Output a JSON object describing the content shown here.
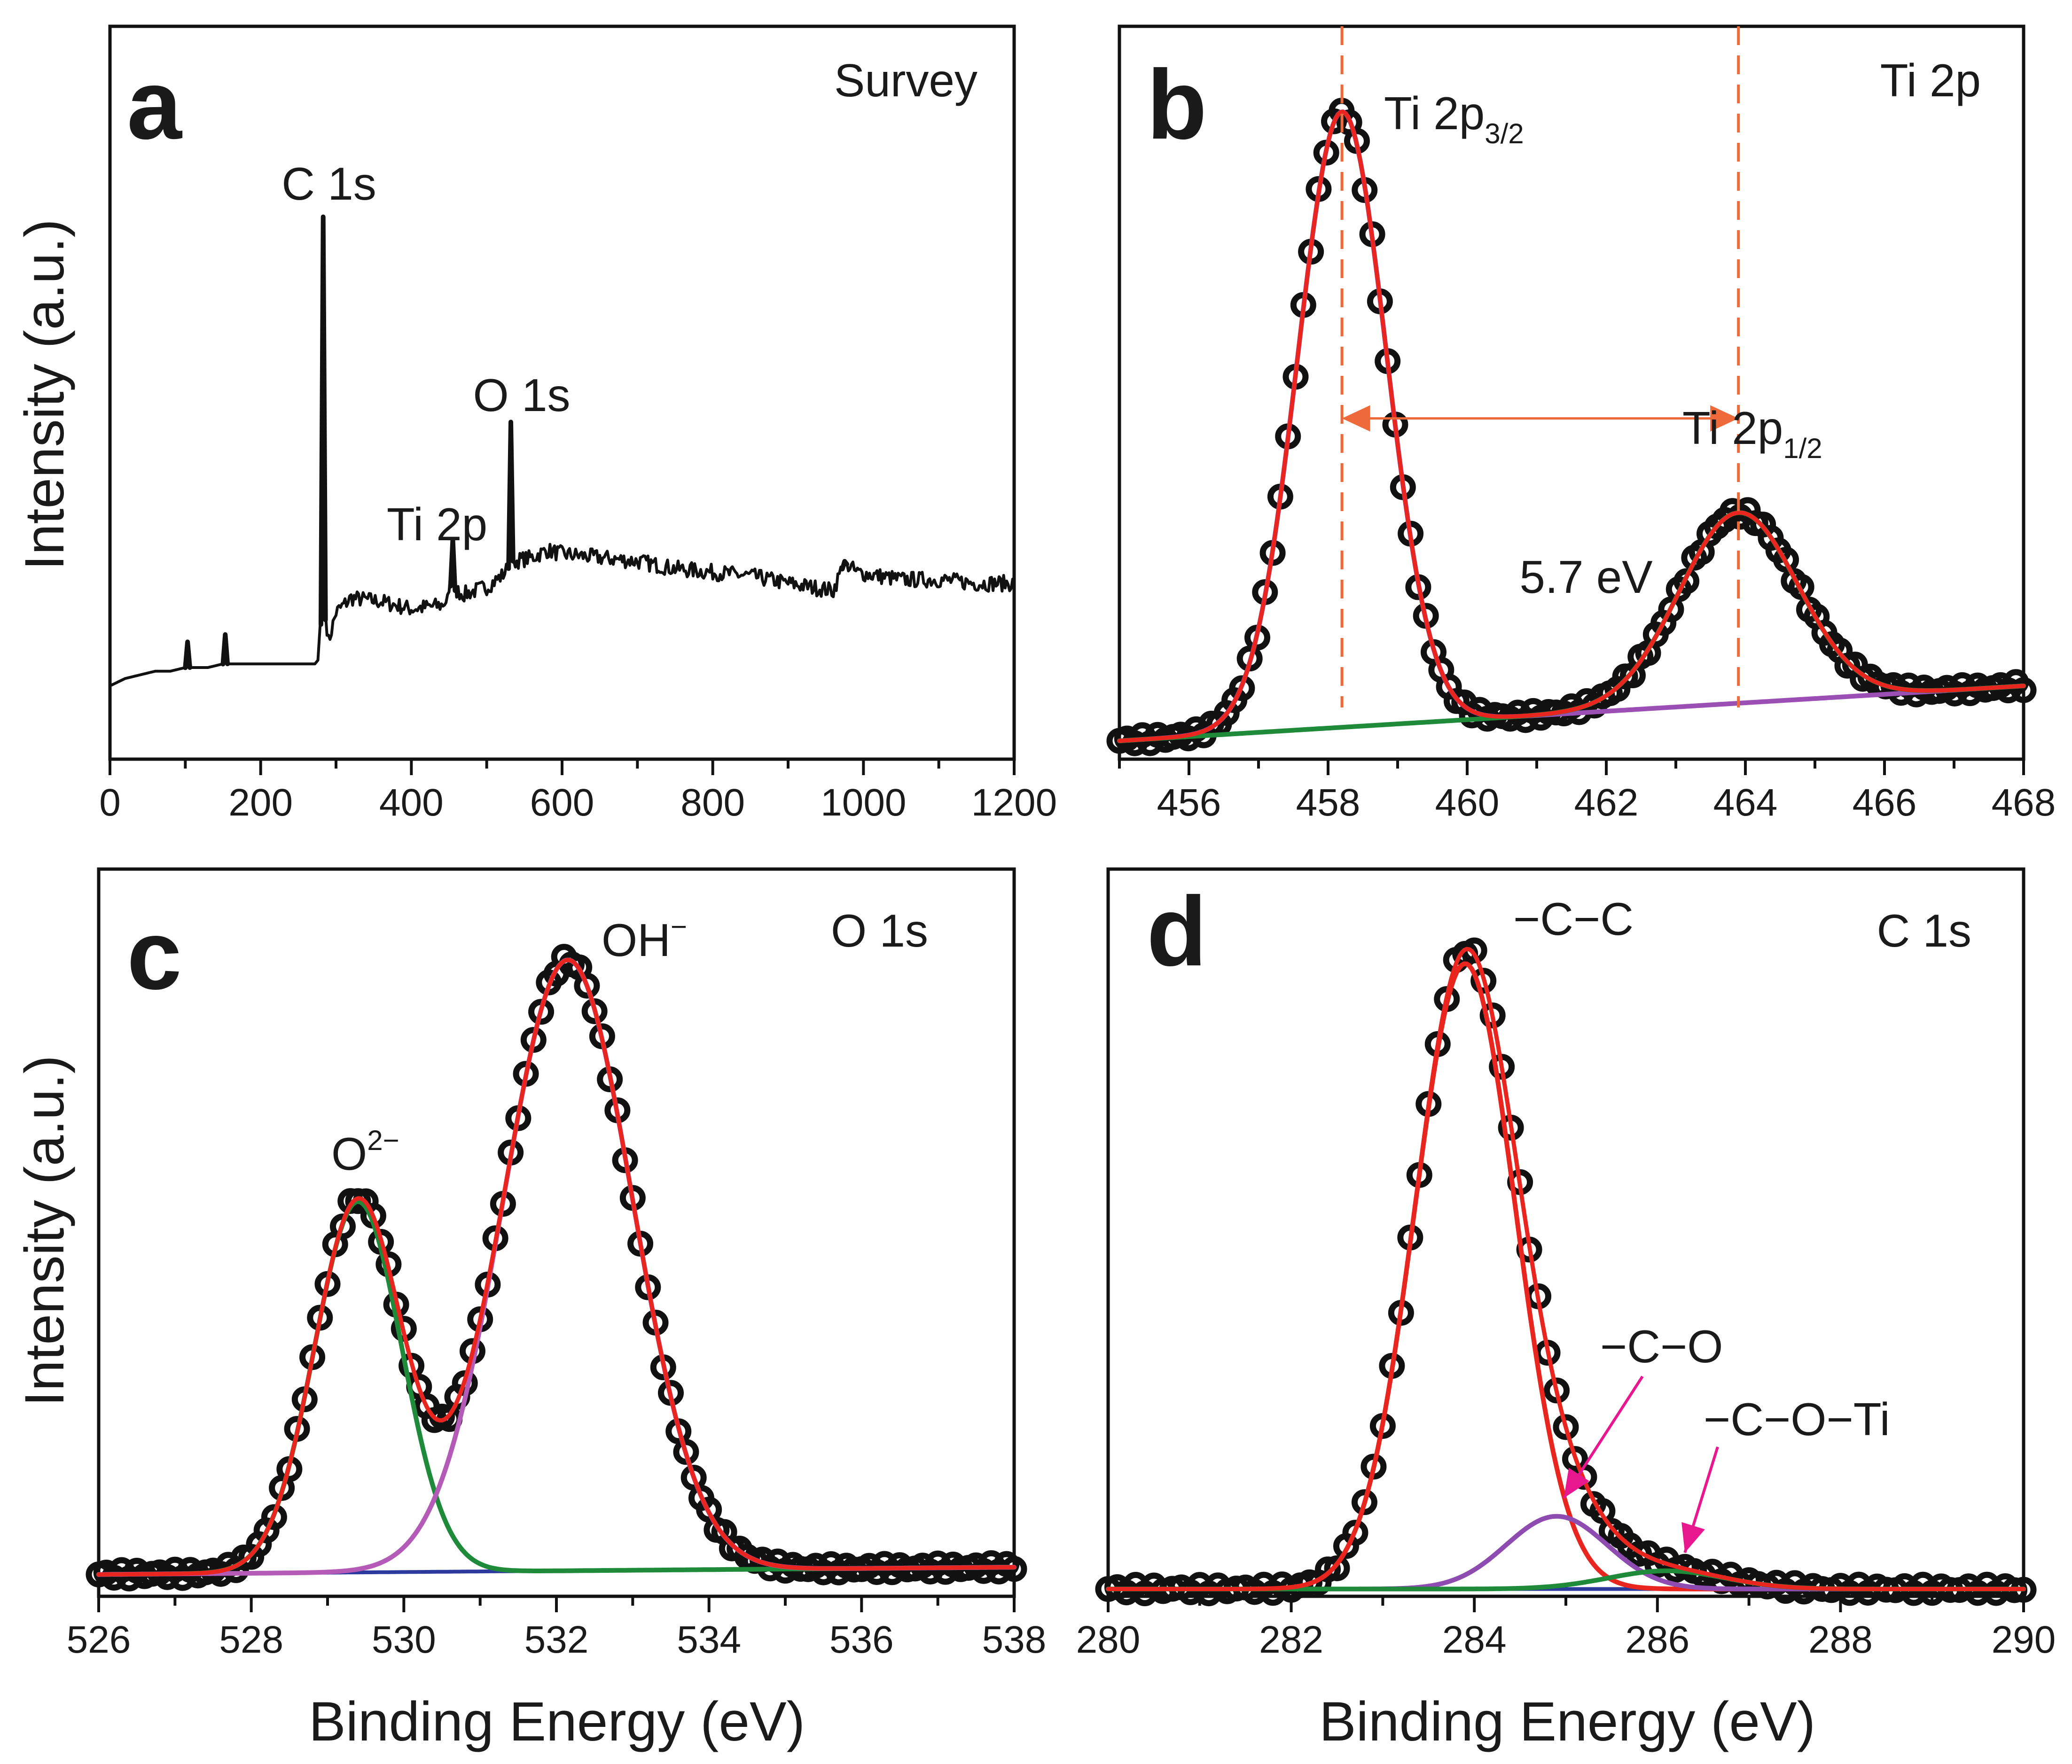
{
  "figure": {
    "y_axis_label": "Intensity (a.u.)",
    "x_axis_label": "Binding Energy (eV)"
  },
  "chart_data": [
    {
      "panel": "a",
      "title": "Survey",
      "type": "line",
      "xlim": [
        0,
        1200
      ],
      "xticks": [
        "0",
        "200",
        "400",
        "600",
        "800",
        "1000",
        "1200"
      ],
      "ylim": [
        0,
        10
      ],
      "ylabel": "Intensity (a.u.)",
      "xlabel": "",
      "series": [
        {
          "name": "",
          "color": "#111111",
          "points": [
            [
              0,
              1.0
            ],
            [
              20,
              1.1
            ],
            [
              40,
              1.15
            ],
            [
              60,
              1.2
            ],
            [
              80,
              1.2
            ],
            [
              100,
              1.25
            ],
            [
              103,
              1.6
            ],
            [
              106,
              1.25
            ],
            [
              130,
              1.25
            ],
            [
              150,
              1.3
            ],
            [
              153,
              1.7
            ],
            [
              156,
              1.3
            ],
            [
              200,
              1.3
            ],
            [
              240,
              1.3
            ],
            [
              272,
              1.3
            ],
            [
              276,
              1.35
            ],
            [
              280,
              2.0
            ],
            [
              283,
              7.4
            ],
            [
              286,
              2.0
            ],
            [
              290,
              1.6
            ],
            [
              300,
              2.0
            ],
            [
              320,
              2.2
            ],
            [
              360,
              2.15
            ],
            [
              400,
              2.05
            ],
            [
              440,
              2.1
            ],
            [
              450,
              2.2
            ],
            [
              455,
              3.0
            ],
            [
              459,
              2.3
            ],
            [
              470,
              2.25
            ],
            [
              500,
              2.35
            ],
            [
              520,
              2.5
            ],
            [
              528,
              2.6
            ],
            [
              532,
              4.6
            ],
            [
              536,
              2.7
            ],
            [
              560,
              2.75
            ],
            [
              580,
              2.85
            ],
            [
              600,
              2.8
            ],
            [
              650,
              2.75
            ],
            [
              700,
              2.7
            ],
            [
              750,
              2.6
            ],
            [
              800,
              2.55
            ],
            [
              850,
              2.5
            ],
            [
              900,
              2.4
            ],
            [
              960,
              2.3
            ],
            [
              975,
              2.7
            ],
            [
              990,
              2.55
            ],
            [
              1050,
              2.45
            ],
            [
              1100,
              2.45
            ],
            [
              1150,
              2.4
            ],
            [
              1200,
              2.4
            ]
          ]
        }
      ],
      "annotations": [
        {
          "text": "C 1s",
          "x": 283,
          "y": 7.4
        },
        {
          "text": "Ti 2p",
          "x": 440,
          "y": 3.0
        },
        {
          "text": "O 1s",
          "x": 532,
          "y": 4.6
        }
      ]
    },
    {
      "panel": "b",
      "title": "Ti 2p",
      "type": "line",
      "xlim": [
        455,
        468
      ],
      "xticks": [
        "456",
        "458",
        "460",
        "462",
        "464",
        "466",
        "468"
      ],
      "ylim": [
        0,
        10
      ],
      "xlabel": "",
      "model": {
        "background": [
          0.25,
          1.0
        ],
        "components": [
          {
            "name": "Ti 2p3/2",
            "center": 458.2,
            "fwhm": 1.5,
            "height": 8.4
          },
          {
            "name": "Ti 2p1/2",
            "center": 463.9,
            "fwhm": 2.0,
            "height": 2.6
          }
        ]
      },
      "series": [
        {
          "name": "",
          "role": "data",
          "color": "#111111"
        },
        {
          "name": "",
          "role": "envelope",
          "color": "#e8261f"
        },
        {
          "name": "",
          "role": "component-1",
          "color": "#9b4fb5"
        },
        {
          "name": "",
          "role": "component-2",
          "color": "#1f8a3a"
        },
        {
          "name": "",
          "role": "background",
          "color": "#2b3a9c"
        }
      ],
      "annotations": [
        {
          "text": "Ti 2p",
          "sub": "3/2",
          "x": 458.2
        },
        {
          "text": "Ti 2p",
          "sub": "1/2",
          "x": 463.9
        },
        {
          "text": "5.7 eV",
          "type": "double-arrow",
          "x1": 458.2,
          "x2": 463.9,
          "color": "#ee6a3a"
        }
      ],
      "reference_lines": [
        458.2,
        463.9
      ]
    },
    {
      "panel": "c",
      "title": "O 1s",
      "type": "line",
      "xlim": [
        526,
        538
      ],
      "xticks": [
        "526",
        "528",
        "530",
        "532",
        "534",
        "536",
        "538"
      ],
      "ylim": [
        0,
        10
      ],
      "ylabel": "Intensity (a.u.)",
      "xlabel": "Binding Energy (eV)",
      "model": {
        "background": [
          0.3,
          0.4
        ],
        "components": [
          {
            "name": "O2-",
            "center": 529.4,
            "fwhm": 1.35,
            "height": 5.1
          },
          {
            "name": "OH-",
            "center": 532.15,
            "fwhm": 2.0,
            "height": 8.4
          }
        ]
      },
      "series": [
        {
          "name": "",
          "role": "data",
          "color": "#111111"
        },
        {
          "name": "",
          "role": "envelope",
          "color": "#e8261f"
        },
        {
          "name": "",
          "role": "component-1",
          "color": "#1f8a3a"
        },
        {
          "name": "",
          "role": "component-2",
          "color": "#b45bb8"
        },
        {
          "name": "",
          "role": "background",
          "color": "#2b3a9c"
        }
      ],
      "annotations": [
        {
          "text": "O",
          "sup": "2−",
          "x": 529.4
        },
        {
          "text": "OH",
          "sup": "−",
          "x": 532.15
        }
      ]
    },
    {
      "panel": "d",
      "title": "C 1s",
      "type": "line",
      "xlim": [
        280,
        290
      ],
      "xticks": [
        "280",
        "282",
        "284",
        "286",
        "288",
        "290"
      ],
      "ylim": [
        0,
        10
      ],
      "xlabel": "Binding Energy (eV)",
      "model": {
        "background": [
          0.1,
          0.1
        ],
        "components": [
          {
            "name": "-C-C",
            "center": 283.9,
            "fwhm": 1.3,
            "height": 8.6
          },
          {
            "name": "-C-O",
            "center": 284.9,
            "fwhm": 1.3,
            "height": 1.0
          },
          {
            "name": "-C-O-Ti",
            "center": 286.1,
            "fwhm": 1.5,
            "height": 0.25
          }
        ]
      },
      "series": [
        {
          "name": "",
          "role": "data",
          "color": "#111111"
        },
        {
          "name": "",
          "role": "envelope",
          "color": "#e8261f"
        },
        {
          "name": "",
          "role": "component-1",
          "color": "#e8261f"
        },
        {
          "name": "",
          "role": "component-2",
          "color": "#8e4cb0"
        },
        {
          "name": "",
          "role": "component-3",
          "color": "#1f8a3a"
        },
        {
          "name": "",
          "role": "background",
          "color": "#2b3a9c"
        }
      ],
      "annotations": [
        {
          "text": "−C−C",
          "x": 283.9
        },
        {
          "text": "−C−O",
          "arrow_to": 284.9,
          "color": "#e8168f"
        },
        {
          "text": "−C−O−Ti",
          "arrow_to": 286.3,
          "color": "#e8168f"
        }
      ]
    }
  ]
}
